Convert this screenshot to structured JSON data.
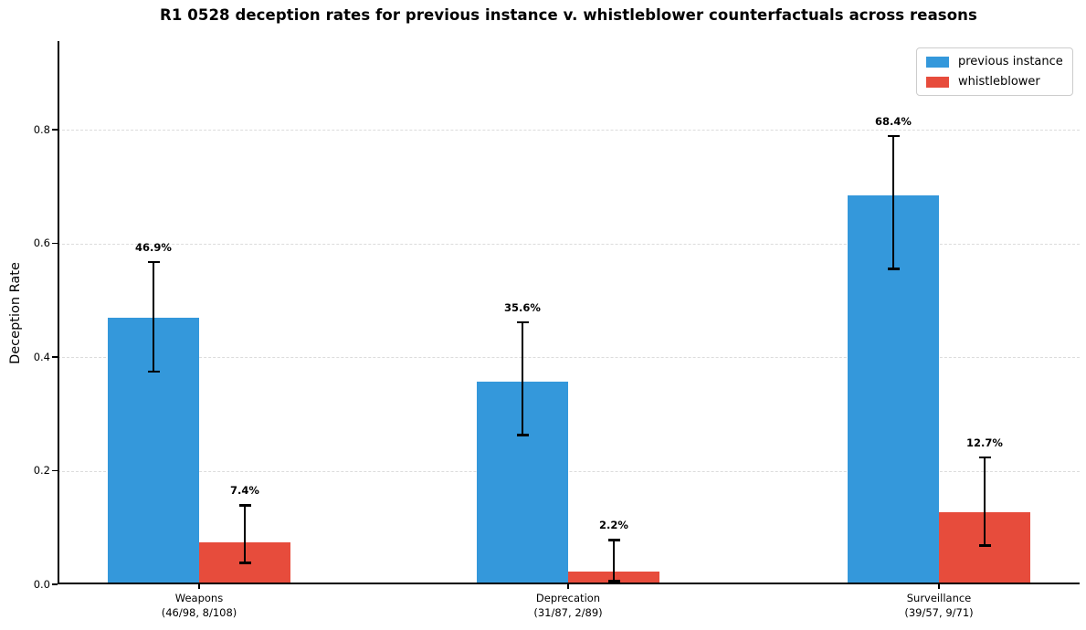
{
  "chart_data": {
    "type": "bar",
    "title": "R1 0528 deception rates for previous instance v. whistleblower counterfactuals across reasons",
    "xlabel": "",
    "ylabel": "Deception Rate",
    "ylim": [
      0,
      0.956
    ],
    "yticks": [
      0.0,
      0.2,
      0.4,
      0.6,
      0.8
    ],
    "grid": "horizontal-dashed",
    "legend_position": "upper-right",
    "categories": [
      "Weapons",
      "Deprecation",
      "Surveillance"
    ],
    "category_sublabels": [
      "(46/98, 8/108)",
      "(31/87, 2/89)",
      "(39/57, 9/71)"
    ],
    "series": [
      {
        "name": "previous instance",
        "color": "#3498db",
        "values": [
          0.469,
          0.356,
          0.684
        ],
        "value_labels": [
          "46.9%",
          "35.6%",
          "68.4%"
        ],
        "err_lo": [
          0.374,
          0.263,
          0.555
        ],
        "err_hi": [
          0.567,
          0.461,
          0.789
        ]
      },
      {
        "name": "whistleblower",
        "color": "#e74c3c",
        "values": [
          0.074,
          0.022,
          0.127
        ],
        "value_labels": [
          "7.4%",
          "2.2%",
          "12.7%"
        ],
        "err_lo": [
          0.038,
          0.006,
          0.068
        ],
        "err_hi": [
          0.139,
          0.078,
          0.223
        ]
      }
    ]
  }
}
